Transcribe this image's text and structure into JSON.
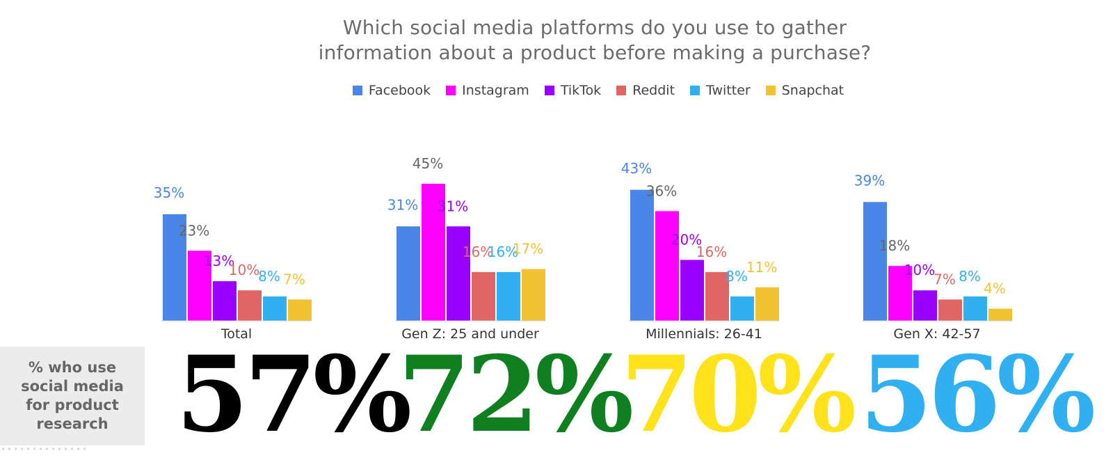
{
  "title_lines": [
    "Which social media platforms do you use to gather",
    "information about a product before making a purchase?"
  ],
  "legend": [
    {
      "name": "Facebook",
      "color": "#4a86e8"
    },
    {
      "name": "Instagram",
      "color": "#ff00ff"
    },
    {
      "name": "TikTok",
      "color": "#9900ff"
    },
    {
      "name": "Reddit",
      "color": "#e06666"
    },
    {
      "name": "Twitter",
      "color": "#30b0f0"
    },
    {
      "name": "Snapchat",
      "color": "#f1c232"
    }
  ],
  "chart_data": {
    "type": "bar",
    "categories": [
      "Total",
      "Gen Z: 25 and under",
      "Millennials: 26-41",
      "Gen X: 42-57"
    ],
    "series": [
      {
        "name": "Facebook",
        "values": [
          35,
          31,
          43,
          39
        ]
      },
      {
        "name": "Instagram",
        "values": [
          23,
          45,
          36,
          18
        ]
      },
      {
        "name": "TikTok",
        "values": [
          13,
          31,
          20,
          10
        ]
      },
      {
        "name": "Reddit",
        "values": [
          10,
          16,
          16,
          7
        ]
      },
      {
        "name": "Twitter",
        "values": [
          8,
          16,
          8,
          8
        ]
      },
      {
        "name": "Snapchat",
        "values": [
          7,
          17,
          11,
          4
        ]
      }
    ],
    "label_colors": [
      "#4a86e8",
      "#666666",
      "#9900ff",
      "#e06666",
      "#30b0f0",
      "#f1c232"
    ],
    "ylim": [
      0,
      45
    ]
  },
  "side_label": "% who use social media for product research",
  "big_percentages": [
    {
      "value": "57%",
      "color": "#000000"
    },
    {
      "value": "72%",
      "color": "#0f7f1f"
    },
    {
      "value": "70%",
      "color": "#ffe21a"
    },
    {
      "value": "56%",
      "color": "#30b0f0"
    }
  ]
}
